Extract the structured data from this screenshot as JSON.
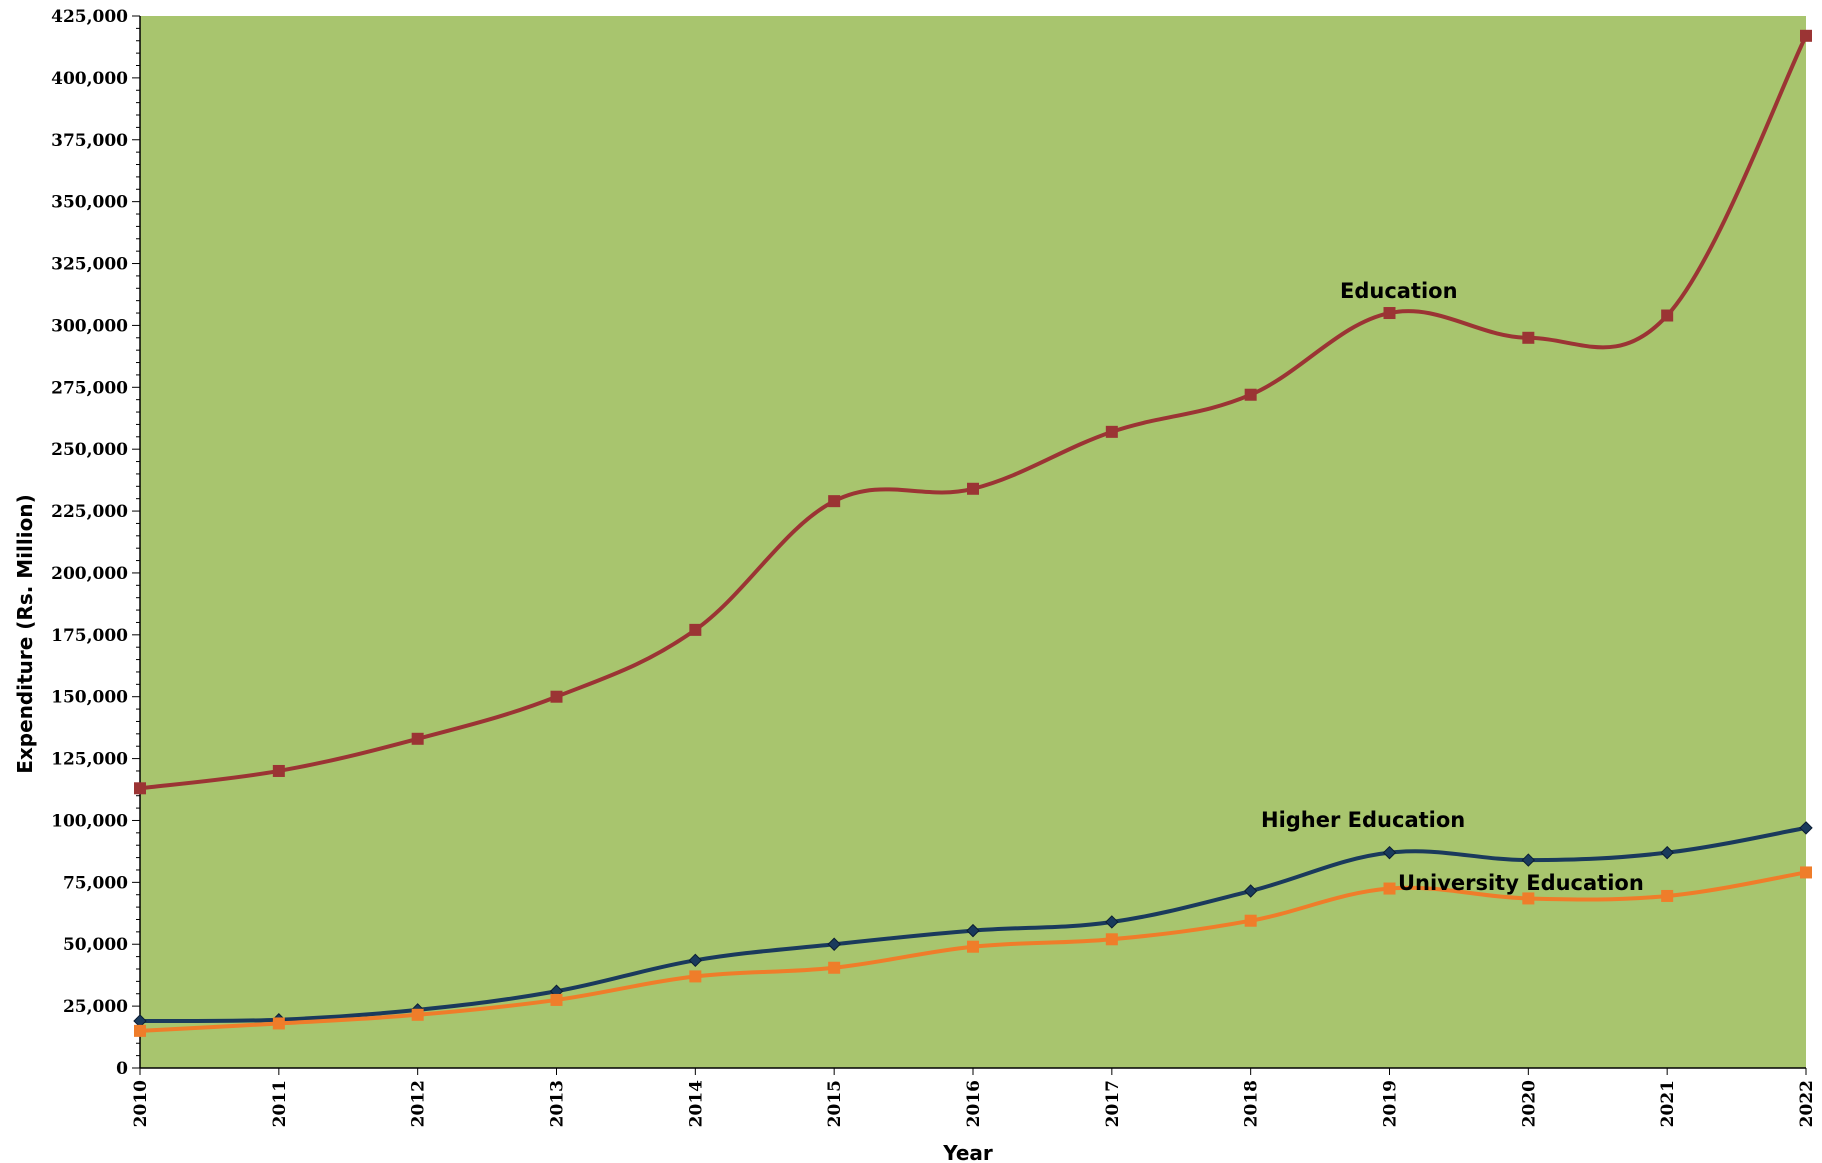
{
  "chart_data": {
    "type": "line",
    "title": "",
    "xlabel": "Year",
    "ylabel": "Expenditure  (Rs. Million)",
    "categories": [
      "2010",
      "2011",
      "2012",
      "2013",
      "2014",
      "2015",
      "2016",
      "2017",
      "2018",
      "2019",
      "2020",
      "2021",
      "2022"
    ],
    "ylim": [
      0,
      425000
    ],
    "ytick_step": 25000,
    "yticks": [
      "0",
      "25,000",
      "50,000",
      "75,000",
      "100,000",
      "125,000",
      "150,000",
      "175,000",
      "200,000",
      "225,000",
      "250,000",
      "275,000",
      "300,000",
      "325,000",
      "350,000",
      "375,000",
      "400,000",
      "425,000"
    ],
    "grid": false,
    "legend": "none",
    "plot_background": "#a8c56e",
    "series": [
      {
        "name": "Education",
        "color": "#9b3434",
        "marker": "square",
        "values": [
          113000,
          120000,
          133000,
          150000,
          177000,
          229000,
          234000,
          257000,
          272000,
          305000,
          295000,
          304000,
          417000
        ]
      },
      {
        "name": "Higher Education",
        "color": "#1a3a5c",
        "marker": "diamond",
        "values": [
          19000,
          19500,
          23500,
          31000,
          43500,
          50000,
          55500,
          59000,
          71500,
          87000,
          84000,
          87000,
          97000
        ]
      },
      {
        "name": "University Education",
        "color": "#ef7d2a",
        "marker": "square",
        "values": [
          15000,
          18000,
          21500,
          27500,
          37000,
          40500,
          49000,
          52000,
          59500,
          72500,
          68500,
          69500,
          79000
        ]
      }
    ]
  }
}
